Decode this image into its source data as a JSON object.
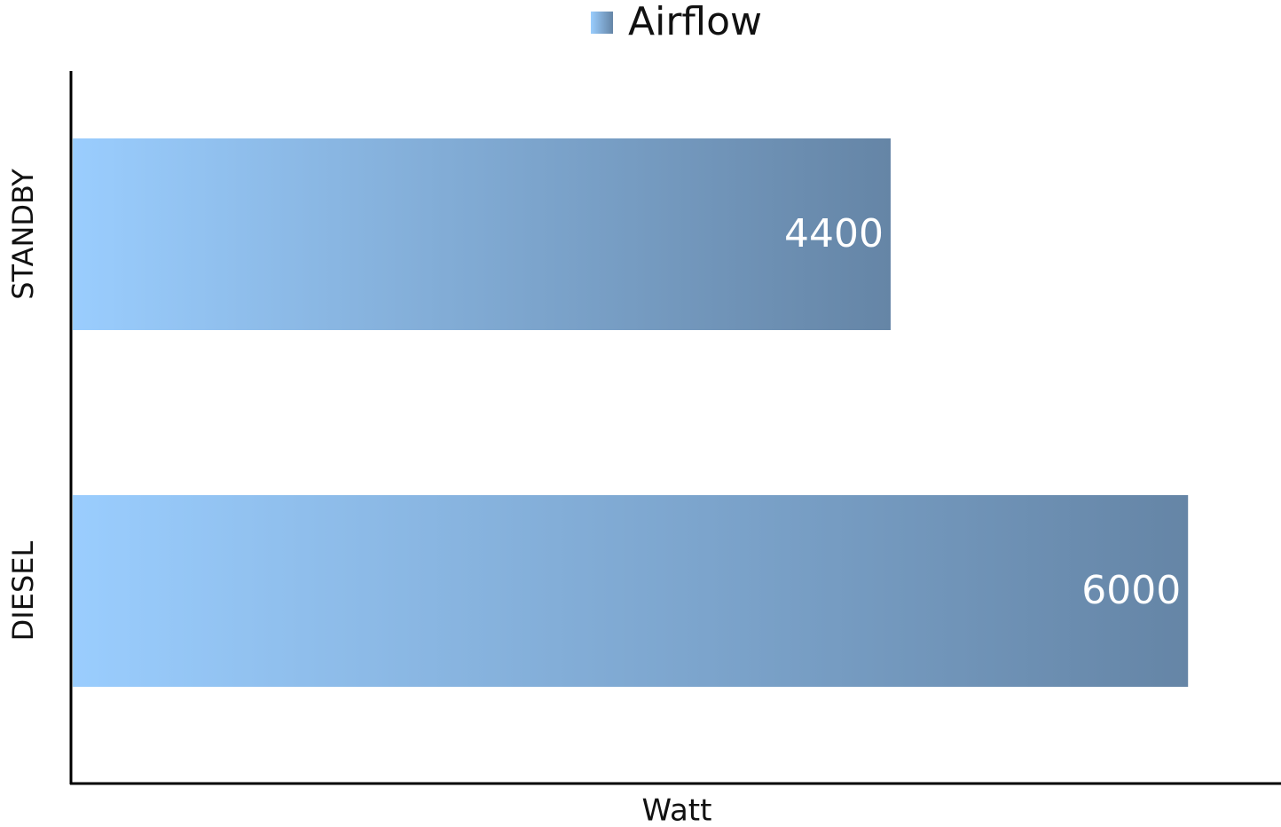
{
  "chart_data": {
    "type": "hbar",
    "categories": [
      "STANDBY",
      "DIESEL"
    ],
    "series": [
      {
        "name": "Airflow",
        "gradient": [
          "#9acdfe",
          "#6585a6"
        ],
        "values": [
          4400,
          6000
        ]
      }
    ],
    "xlabel": "Watt",
    "xlim": [
      0,
      6500
    ],
    "legend": "top"
  }
}
